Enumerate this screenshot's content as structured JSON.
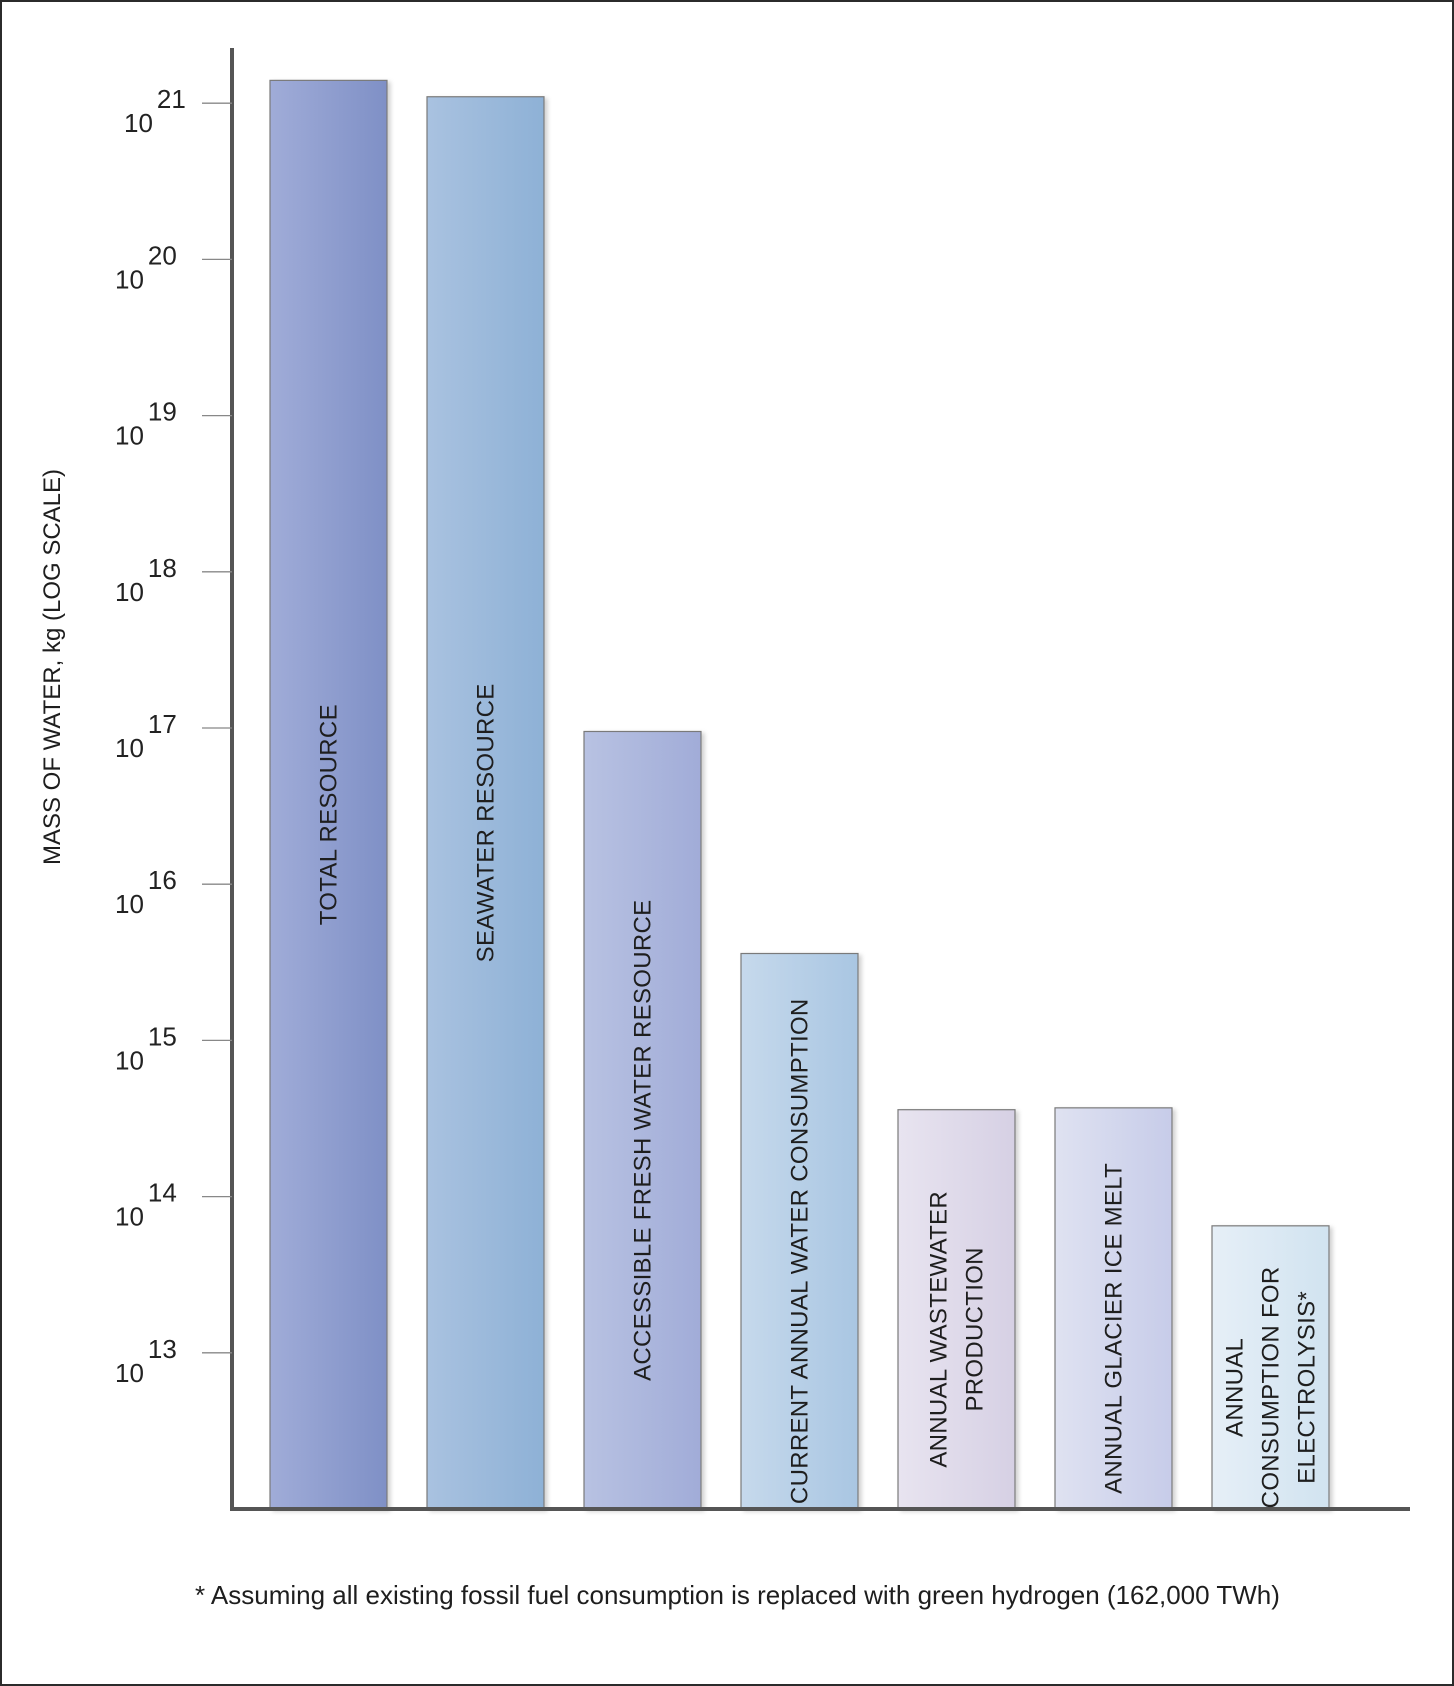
{
  "chart_data": {
    "type": "bar",
    "title": "",
    "xlabel": "",
    "ylabel": "MASS OF WATER, kg  (LOG SCALE)",
    "yscale": "log",
    "ylim": [
      1000000000000.0,
      1e+21
    ],
    "yticks": [
      {
        "base": "10",
        "exp": "13",
        "value": 10000000000000.0
      },
      {
        "base": "10",
        "exp": "14",
        "value": 100000000000000.0
      },
      {
        "base": "10",
        "exp": "15",
        "value": 1000000000000000.0
      },
      {
        "base": "10",
        "exp": "16",
        "value": 1e+16
      },
      {
        "base": "10",
        "exp": "17",
        "value": 1e+17
      },
      {
        "base": "10",
        "exp": "18",
        "value": 1e+18
      },
      {
        "base": "10",
        "exp": "19",
        "value": 1e+19
      },
      {
        "base": "10",
        "exp": "20",
        "value": 1e+20
      },
      {
        "base": "10",
        "exp": "21",
        "value": 1e+21
      }
    ],
    "grid": false,
    "legend": "none",
    "bars": [
      {
        "label_lines": [
          "TOTAL RESOURCE"
        ],
        "value": 1.4e+21,
        "color_left": "#a0acd8",
        "color_right": "#7f90c6"
      },
      {
        "label_lines": [
          "SEAWATER RESOURCE"
        ],
        "value": 1.1e+21,
        "color_left": "#a9c2e0",
        "color_right": "#8eb1d6"
      },
      {
        "label_lines": [
          "ACCESSIBLE FRESH WATER RESOURCE"
        ],
        "value": 9.5e+16,
        "color_left": "#b8c2e2",
        "color_right": "#a1acd8"
      },
      {
        "label_lines": [
          "CURRENT ANNUAL WATER CONSUMPTION"
        ],
        "value": 3600000000000000.0,
        "color_left": "#c6d9ec",
        "color_right": "#a9c6e2"
      },
      {
        "label_lines": [
          "ANNUAL WASTEWATER",
          "PRODUCTION"
        ],
        "value": 360000000000000.0,
        "color_left": "#e8e4f0",
        "color_right": "#d6d0e4"
      },
      {
        "label_lines": [
          "ANNUAL GLACIER ICE MELT"
        ],
        "value": 370000000000000.0,
        "color_left": "#dfe2f1",
        "color_right": "#c7cce9"
      },
      {
        "label_lines": [
          "ANNUAL",
          "CONSUMPTION FOR",
          "ELECTROLYSIS*"
        ],
        "value": 65000000000000.0,
        "color_left": "#e6eff7",
        "color_right": "#d1e3f0"
      }
    ],
    "annotations": [
      "* Assuming all existing fossil fuel consumption is replaced with green hydrogen (162,000 TWh)"
    ]
  },
  "colors": {
    "axis": "#555555",
    "bar_outline": "#7a7a7a",
    "frame": "#2b2b2b"
  }
}
